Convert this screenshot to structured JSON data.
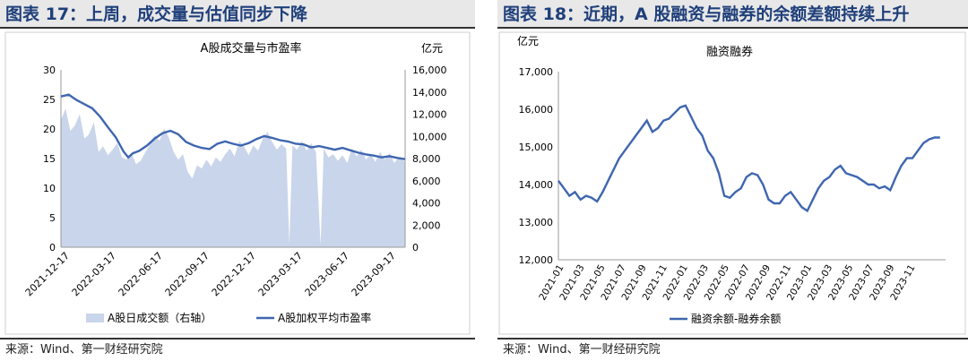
{
  "left": {
    "figure_title": "图表 17：上周，成交量与估值同步下降",
    "source": "来源：Wind、第一财经研究院",
    "chart_data": {
      "type": "area+line",
      "title": "A股成交量与市盈率",
      "y_left": {
        "min": 0,
        "max": 30,
        "ticks": [
          "0",
          "5",
          "10",
          "15",
          "20",
          "25",
          "30"
        ]
      },
      "y_right": {
        "unit": "亿元",
        "min": 0,
        "max": 16000,
        "ticks": [
          "0",
          "2,000",
          "4,000",
          "6,000",
          "8,000",
          "10,000",
          "12,000",
          "14,000",
          "16,000"
        ]
      },
      "x_ticks": [
        "2021-12-17",
        "2022-03-17",
        "2022-06-17",
        "2022-09-17",
        "2022-12-17",
        "2023-03-17",
        "2023-06-17",
        "2023-09-17"
      ],
      "x_index_range": [
        0,
        22
      ],
      "legend": [
        {
          "label": "A股日成交额（右轴）",
          "color": "#c9d5ea"
        },
        {
          "label": "A股加权平均市盈率",
          "color": "#3f66b0"
        }
      ],
      "turnover_right_axis": [
        [
          0,
          11500
        ],
        [
          0.3,
          12500
        ],
        [
          0.6,
          10500
        ],
        [
          0.9,
          11000
        ],
        [
          1.2,
          12000
        ],
        [
          1.5,
          9800
        ],
        [
          1.8,
          10200
        ],
        [
          2.1,
          11300
        ],
        [
          2.4,
          8600
        ],
        [
          2.7,
          9100
        ],
        [
          3,
          8300
        ],
        [
          3.3,
          8800
        ],
        [
          3.6,
          9400
        ],
        [
          3.9,
          8100
        ],
        [
          4.2,
          7900
        ],
        [
          4.5,
          8500
        ],
        [
          4.8,
          7500
        ],
        [
          5.1,
          7800
        ],
        [
          5.4,
          8600
        ],
        [
          5.7,
          9300
        ],
        [
          6,
          10100
        ],
        [
          6.3,
          9600
        ],
        [
          6.6,
          10700
        ],
        [
          6.9,
          9900
        ],
        [
          7.2,
          8600
        ],
        [
          7.5,
          7900
        ],
        [
          7.8,
          8400
        ],
        [
          8.1,
          6800
        ],
        [
          8.4,
          6200
        ],
        [
          8.7,
          7400
        ],
        [
          9,
          7100
        ],
        [
          9.3,
          7900
        ],
        [
          9.6,
          7300
        ],
        [
          9.9,
          8100
        ],
        [
          10.2,
          7700
        ],
        [
          10.5,
          8400
        ],
        [
          10.8,
          8900
        ],
        [
          11.1,
          8200
        ],
        [
          11.4,
          9600
        ],
        [
          11.7,
          9100
        ],
        [
          12,
          8300
        ],
        [
          12.3,
          9200
        ],
        [
          12.6,
          8700
        ],
        [
          12.9,
          9800
        ],
        [
          13.2,
          10400
        ],
        [
          13.5,
          9500
        ],
        [
          13.8,
          8800
        ],
        [
          14.1,
          9300
        ],
        [
          14.4,
          8900
        ],
        [
          14.6,
          300
        ],
        [
          14.8,
          9200
        ],
        [
          15.1,
          8800
        ],
        [
          15.4,
          9600
        ],
        [
          15.7,
          8700
        ],
        [
          16,
          9400
        ],
        [
          16.3,
          8600
        ],
        [
          16.6,
          200
        ],
        [
          16.8,
          8900
        ],
        [
          17.1,
          8100
        ],
        [
          17.4,
          8400
        ],
        [
          17.7,
          7800
        ],
        [
          18,
          8300
        ],
        [
          18.3,
          7600
        ],
        [
          18.6,
          8900
        ],
        [
          18.9,
          8200
        ],
        [
          19.2,
          8800
        ],
        [
          19.5,
          7900
        ],
        [
          19.8,
          8400
        ],
        [
          20.1,
          7700
        ],
        [
          20.4,
          8600
        ],
        [
          20.7,
          7900
        ],
        [
          21,
          8500
        ],
        [
          21.3,
          7600
        ],
        [
          21.6,
          8100
        ],
        [
          22,
          7700
        ]
      ],
      "pe_left_axis": [
        [
          0,
          25.5
        ],
        [
          0.5,
          25.8
        ],
        [
          1,
          24.9
        ],
        [
          1.5,
          24.2
        ],
        [
          2,
          23.5
        ],
        [
          2.5,
          22.1
        ],
        [
          3,
          20.3
        ],
        [
          3.5,
          18.6
        ],
        [
          4,
          16.2
        ],
        [
          4.3,
          15.2
        ],
        [
          4.6,
          15.9
        ],
        [
          5,
          16.3
        ],
        [
          5.5,
          17.2
        ],
        [
          6,
          18.4
        ],
        [
          6.5,
          19.3
        ],
        [
          7,
          19.7
        ],
        [
          7.5,
          19.1
        ],
        [
          8,
          17.8
        ],
        [
          8.5,
          17.2
        ],
        [
          9,
          16.8
        ],
        [
          9.5,
          16.6
        ],
        [
          10,
          17.5
        ],
        [
          10.5,
          17.9
        ],
        [
          11,
          17.5
        ],
        [
          11.5,
          17.2
        ],
        [
          12,
          17.6
        ],
        [
          12.5,
          18.3
        ],
        [
          13,
          18.8
        ],
        [
          13.5,
          18.5
        ],
        [
          14,
          18.1
        ],
        [
          14.5,
          17.9
        ],
        [
          15,
          17.5
        ],
        [
          15.5,
          17.4
        ],
        [
          16,
          16.9
        ],
        [
          16.5,
          17.1
        ],
        [
          17,
          16.8
        ],
        [
          17.5,
          16.5
        ],
        [
          18,
          16.8
        ],
        [
          18.5,
          16.4
        ],
        [
          19,
          16.0
        ],
        [
          19.5,
          15.7
        ],
        [
          20,
          15.5
        ],
        [
          20.5,
          15.2
        ],
        [
          21,
          15.4
        ],
        [
          21.5,
          15.1
        ],
        [
          22,
          14.9
        ]
      ]
    }
  },
  "right": {
    "figure_title": "图表 18：近期，A 股融资与融券的余额差额持续上升",
    "source": "来源：Wind、第一财经研究院",
    "chart_data": {
      "type": "line",
      "title": "融资融券",
      "ylabel": "亿元",
      "y": {
        "min": 12000,
        "max": 17000,
        "ticks": [
          "12,000",
          "13,000",
          "14,000",
          "15,000",
          "16,000",
          "17,000"
        ]
      },
      "x_ticks": [
        "2021-01",
        "2021-03",
        "2021-05",
        "2021-07",
        "2021-09",
        "2021-11",
        "2022-01",
        "2022-03",
        "2022-05",
        "2022-07",
        "2022-09",
        "2022-11",
        "2023-01",
        "2023-03",
        "2023-05",
        "2023-07",
        "2023-09",
        "2023-11"
      ],
      "x_index_range": [
        0,
        35
      ],
      "legend": [
        {
          "label": "融资余额-融券余额",
          "color": "#3f66b0"
        }
      ],
      "series": [
        [
          0,
          14100
        ],
        [
          0.5,
          13900
        ],
        [
          1,
          13700
        ],
        [
          1.5,
          13800
        ],
        [
          2,
          13600
        ],
        [
          2.5,
          13700
        ],
        [
          3,
          13650
        ],
        [
          3.5,
          13550
        ],
        [
          4,
          13800
        ],
        [
          4.5,
          14100
        ],
        [
          5,
          14400
        ],
        [
          5.5,
          14700
        ],
        [
          6,
          14900
        ],
        [
          6.5,
          15100
        ],
        [
          7,
          15300
        ],
        [
          7.5,
          15500
        ],
        [
          8,
          15700
        ],
        [
          8.5,
          15400
        ],
        [
          9,
          15500
        ],
        [
          9.5,
          15700
        ],
        [
          10,
          15750
        ],
        [
          10.5,
          15900
        ],
        [
          11,
          16050
        ],
        [
          11.5,
          16100
        ],
        [
          12,
          15800
        ],
        [
          12.5,
          15500
        ],
        [
          13,
          15300
        ],
        [
          13.5,
          14900
        ],
        [
          14,
          14700
        ],
        [
          14.5,
          14300
        ],
        [
          15,
          13700
        ],
        [
          15.5,
          13650
        ],
        [
          16,
          13800
        ],
        [
          16.5,
          13900
        ],
        [
          17,
          14200
        ],
        [
          17.5,
          14300
        ],
        [
          18,
          14250
        ],
        [
          18.5,
          14000
        ],
        [
          19,
          13600
        ],
        [
          19.5,
          13500
        ],
        [
          20,
          13500
        ],
        [
          20.5,
          13700
        ],
        [
          21,
          13800
        ],
        [
          21.5,
          13600
        ],
        [
          22,
          13400
        ],
        [
          22.5,
          13300
        ],
        [
          23,
          13600
        ],
        [
          23.5,
          13900
        ],
        [
          24,
          14100
        ],
        [
          24.5,
          14200
        ],
        [
          25,
          14400
        ],
        [
          25.5,
          14500
        ],
        [
          26,
          14300
        ],
        [
          26.5,
          14250
        ],
        [
          27,
          14200
        ],
        [
          27.5,
          14100
        ],
        [
          28,
          14000
        ],
        [
          28.5,
          14000
        ],
        [
          29,
          13900
        ],
        [
          29.5,
          13950
        ],
        [
          30,
          13850
        ],
        [
          30.5,
          14200
        ],
        [
          31,
          14500
        ],
        [
          31.5,
          14700
        ],
        [
          32,
          14700
        ],
        [
          32.5,
          14900
        ],
        [
          33,
          15100
        ],
        [
          33.5,
          15200
        ],
        [
          34,
          15250
        ],
        [
          34.5,
          15250
        ]
      ]
    }
  }
}
